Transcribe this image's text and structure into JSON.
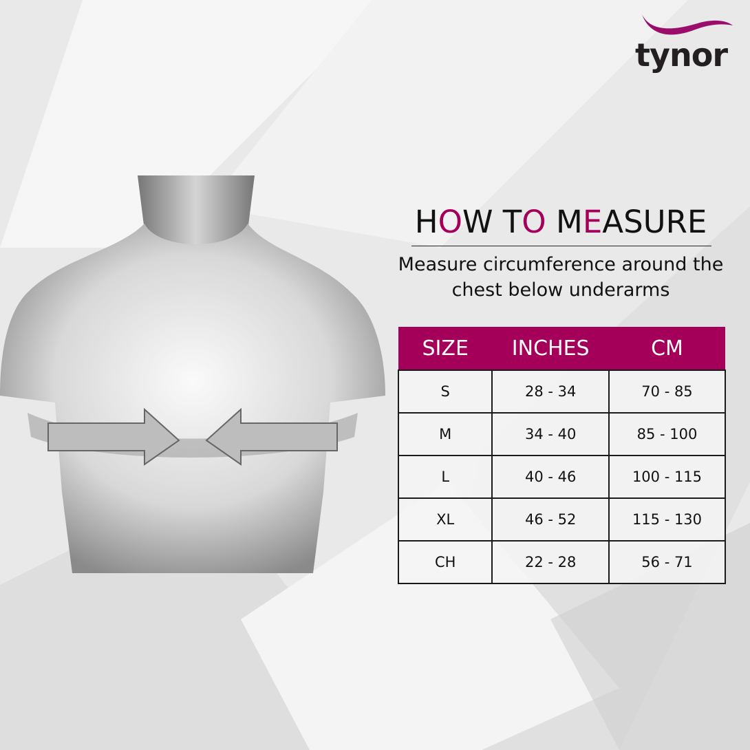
{
  "brand": {
    "name": "tynor",
    "accent": "#a4005a"
  },
  "heading": {
    "parts": [
      {
        "t": "H",
        "accent": false
      },
      {
        "t": "O",
        "accent": true
      },
      {
        "t": "W T",
        "accent": false
      },
      {
        "t": "O",
        "accent": true
      },
      {
        "t": " M",
        "accent": false
      },
      {
        "t": "E",
        "accent": true
      },
      {
        "t": "ASURE",
        "accent": false
      }
    ]
  },
  "instruction": {
    "line1": "Measure circumference around the",
    "line2": "chest below underarms"
  },
  "table": {
    "headers": [
      "SIZE",
      "INCHES",
      "CM"
    ],
    "rows": [
      [
        "S",
        "28 - 34",
        "70 - 85"
      ],
      [
        "M",
        "34 - 40",
        "85 - 100"
      ],
      [
        "L",
        "40 - 46",
        "100 - 115"
      ],
      [
        "XL",
        "46 - 52",
        "115 - 130"
      ],
      [
        "CH",
        "22 - 28",
        "56 - 71"
      ]
    ]
  }
}
